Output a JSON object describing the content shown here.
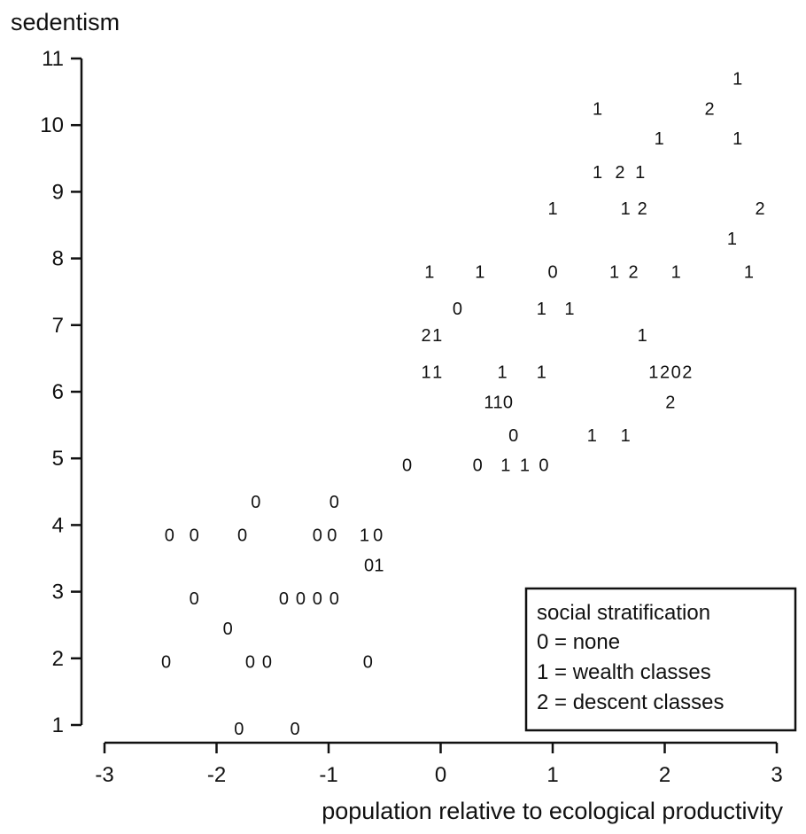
{
  "chart_data": {
    "type": "scatter",
    "xlabel": "population relative to ecological productivity",
    "ylabel": "sedentism",
    "xlim": [
      -3.2,
      3.05
    ],
    "ylim": [
      0.7,
      11.3
    ],
    "xticks": [
      -3,
      -2,
      -1,
      0,
      1,
      2,
      3
    ],
    "yticks": [
      1,
      2,
      3,
      4,
      5,
      6,
      7,
      8,
      9,
      10,
      11
    ],
    "marker": "text-label",
    "grid": false,
    "legend": {
      "placement": "bottom-right",
      "title": "social stratification",
      "entries": [
        "0 = none",
        "1 = wealth classes",
        "2 = descent classes"
      ]
    },
    "points": [
      {
        "x": 2.65,
        "y": 10.7,
        "label": "1"
      },
      {
        "x": 1.4,
        "y": 10.25,
        "label": "1"
      },
      {
        "x": 2.4,
        "y": 10.25,
        "label": "2"
      },
      {
        "x": 1.95,
        "y": 9.8,
        "label": "1"
      },
      {
        "x": 2.65,
        "y": 9.8,
        "label": "1"
      },
      {
        "x": 1.4,
        "y": 9.3,
        "label": "1"
      },
      {
        "x": 1.6,
        "y": 9.3,
        "label": "2"
      },
      {
        "x": 1.78,
        "y": 9.3,
        "label": "1"
      },
      {
        "x": 1.0,
        "y": 8.75,
        "label": "1"
      },
      {
        "x": 1.65,
        "y": 8.75,
        "label": "1"
      },
      {
        "x": 1.8,
        "y": 8.75,
        "label": "2"
      },
      {
        "x": 2.85,
        "y": 8.75,
        "label": "2"
      },
      {
        "x": 2.6,
        "y": 8.3,
        "label": "1"
      },
      {
        "x": -0.1,
        "y": 7.8,
        "label": "1"
      },
      {
        "x": 0.35,
        "y": 7.8,
        "label": "1"
      },
      {
        "x": 1.0,
        "y": 7.8,
        "label": "0"
      },
      {
        "x": 1.55,
        "y": 7.8,
        "label": "1"
      },
      {
        "x": 1.72,
        "y": 7.8,
        "label": "2"
      },
      {
        "x": 2.1,
        "y": 7.8,
        "label": "1"
      },
      {
        "x": 2.75,
        "y": 7.8,
        "label": "1"
      },
      {
        "x": 0.15,
        "y": 7.25,
        "label": "0"
      },
      {
        "x": 0.9,
        "y": 7.25,
        "label": "1"
      },
      {
        "x": 1.15,
        "y": 7.25,
        "label": "1"
      },
      {
        "x": -0.13,
        "y": 6.85,
        "label": "2"
      },
      {
        "x": -0.03,
        "y": 6.85,
        "label": "1"
      },
      {
        "x": 1.8,
        "y": 6.85,
        "label": "1"
      },
      {
        "x": -0.13,
        "y": 6.3,
        "label": "1"
      },
      {
        "x": -0.03,
        "y": 6.3,
        "label": "1"
      },
      {
        "x": 0.55,
        "y": 6.3,
        "label": "1"
      },
      {
        "x": 0.9,
        "y": 6.3,
        "label": "1"
      },
      {
        "x": 1.9,
        "y": 6.3,
        "label": "1"
      },
      {
        "x": 2.0,
        "y": 6.3,
        "label": "2"
      },
      {
        "x": 2.1,
        "y": 6.3,
        "label": "0"
      },
      {
        "x": 2.2,
        "y": 6.3,
        "label": "2"
      },
      {
        "x": 0.43,
        "y": 5.85,
        "label": "1"
      },
      {
        "x": 0.51,
        "y": 5.85,
        "label": "1"
      },
      {
        "x": 0.6,
        "y": 5.85,
        "label": "0"
      },
      {
        "x": 2.05,
        "y": 5.85,
        "label": "2"
      },
      {
        "x": 0.65,
        "y": 5.35,
        "label": "0"
      },
      {
        "x": 1.35,
        "y": 5.35,
        "label": "1"
      },
      {
        "x": 1.65,
        "y": 5.35,
        "label": "1"
      },
      {
        "x": -0.3,
        "y": 4.9,
        "label": "0"
      },
      {
        "x": 0.33,
        "y": 4.9,
        "label": "0"
      },
      {
        "x": 0.58,
        "y": 4.9,
        "label": "1"
      },
      {
        "x": 0.75,
        "y": 4.9,
        "label": "1"
      },
      {
        "x": 0.92,
        "y": 4.9,
        "label": "0"
      },
      {
        "x": -1.65,
        "y": 4.35,
        "label": "0"
      },
      {
        "x": -0.95,
        "y": 4.35,
        "label": "0"
      },
      {
        "x": -2.42,
        "y": 3.85,
        "label": "0"
      },
      {
        "x": -2.2,
        "y": 3.85,
        "label": "0"
      },
      {
        "x": -1.77,
        "y": 3.85,
        "label": "0"
      },
      {
        "x": -1.1,
        "y": 3.85,
        "label": "0"
      },
      {
        "x": -0.97,
        "y": 3.85,
        "label": "0"
      },
      {
        "x": -0.68,
        "y": 3.85,
        "label": "1"
      },
      {
        "x": -0.56,
        "y": 3.85,
        "label": "0"
      },
      {
        "x": -0.64,
        "y": 3.4,
        "label": "0"
      },
      {
        "x": -0.55,
        "y": 3.4,
        "label": "1"
      },
      {
        "x": -2.2,
        "y": 2.9,
        "label": "0"
      },
      {
        "x": -1.4,
        "y": 2.9,
        "label": "0"
      },
      {
        "x": -1.25,
        "y": 2.9,
        "label": "0"
      },
      {
        "x": -1.1,
        "y": 2.9,
        "label": "0"
      },
      {
        "x": -0.95,
        "y": 2.9,
        "label": "0"
      },
      {
        "x": -1.9,
        "y": 2.45,
        "label": "0"
      },
      {
        "x": -2.45,
        "y": 1.95,
        "label": "0"
      },
      {
        "x": -1.7,
        "y": 1.95,
        "label": "0"
      },
      {
        "x": -1.55,
        "y": 1.95,
        "label": "0"
      },
      {
        "x": -0.65,
        "y": 1.95,
        "label": "0"
      },
      {
        "x": -1.8,
        "y": 0.95,
        "label": "0"
      },
      {
        "x": -1.3,
        "y": 0.95,
        "label": "0"
      }
    ]
  }
}
